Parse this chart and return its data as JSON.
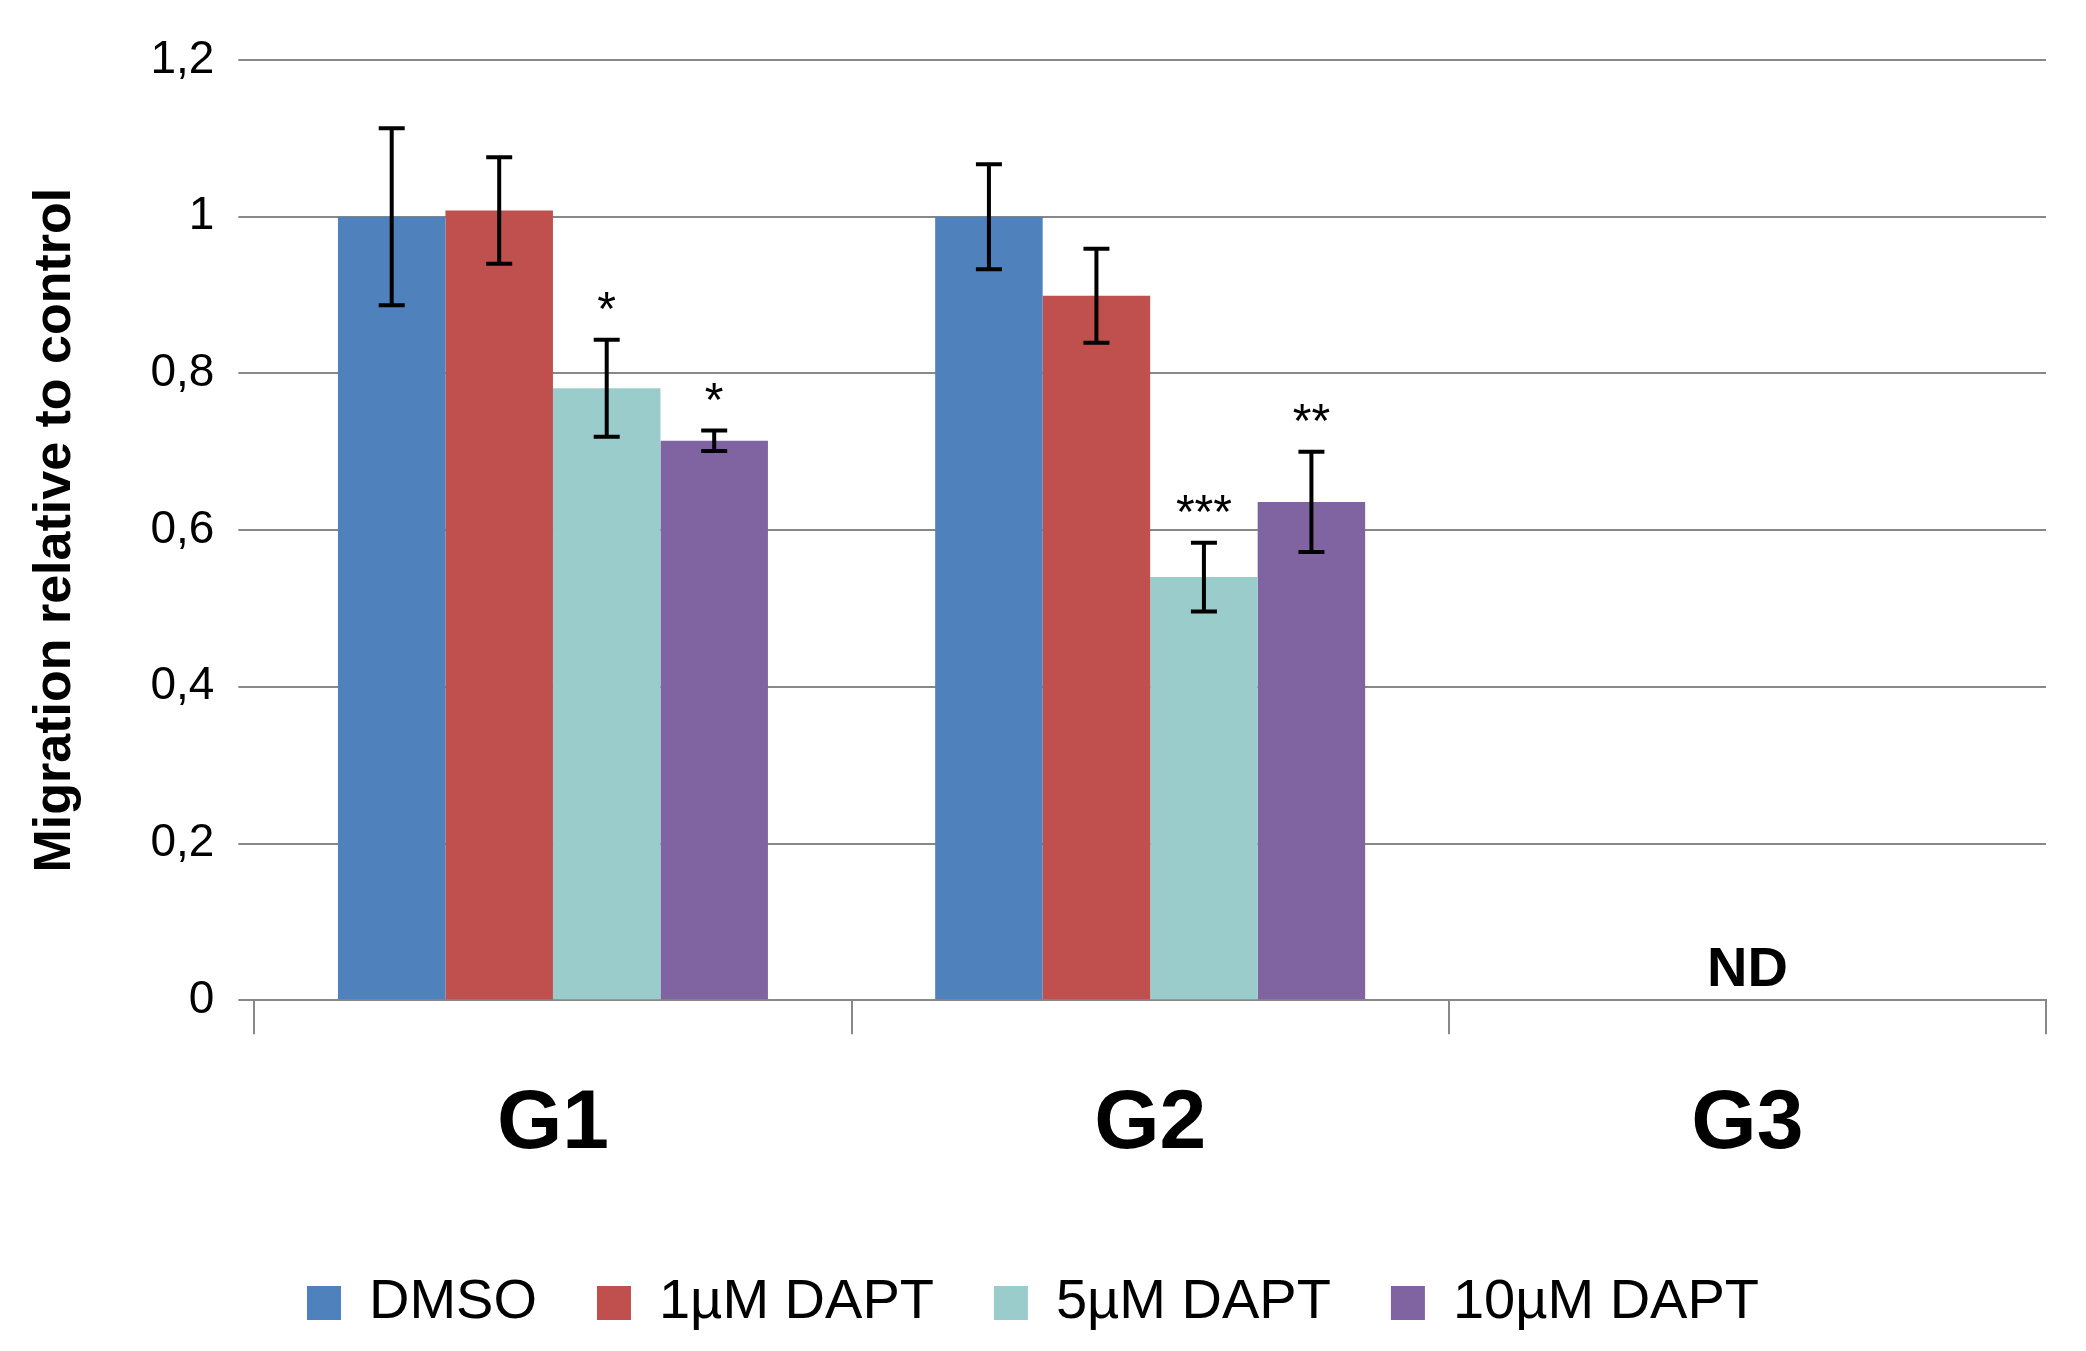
{
  "chart_data": {
    "type": "bar",
    "ylabel": "Migration relative to control",
    "categories": [
      "G1",
      "G2",
      "G3"
    ],
    "series": [
      {
        "name": "DMSO",
        "color": "#4f81bd",
        "values": [
          1.0,
          1.0,
          null
        ],
        "errors": [
          0.113,
          0.067,
          null
        ]
      },
      {
        "name": "1µM DAPT",
        "color": "#c0504d",
        "values": [
          1.008,
          0.899,
          null
        ],
        "errors": [
          0.068,
          0.06,
          null
        ]
      },
      {
        "name": "5µM DAPT",
        "color": "#9bcccc",
        "values": [
          0.781,
          0.54,
          null
        ],
        "errors": [
          0.062,
          0.044,
          null
        ],
        "value_labels": [
          "*",
          "***",
          null
        ]
      },
      {
        "name": "10µM DAPT",
        "color": "#8064a2",
        "values": [
          0.714,
          0.636,
          null
        ],
        "errors": [
          0.013,
          0.064,
          null
        ],
        "value_labels": [
          "*",
          "**",
          null
        ]
      }
    ],
    "ylim": [
      0,
      1.2
    ],
    "yticks": [
      0,
      {
        "value": 0.2,
        "label": "0,2"
      },
      {
        "value": 0.4,
        "label": "0,4"
      },
      {
        "value": 0.6,
        "label": "0,6"
      },
      {
        "value": 0.8,
        "label": "0,8"
      },
      1,
      {
        "value": 1.2,
        "label": "1,2"
      }
    ],
    "grid": "y",
    "legend": "bottom",
    "annotations": [
      "ND"
    ]
  }
}
